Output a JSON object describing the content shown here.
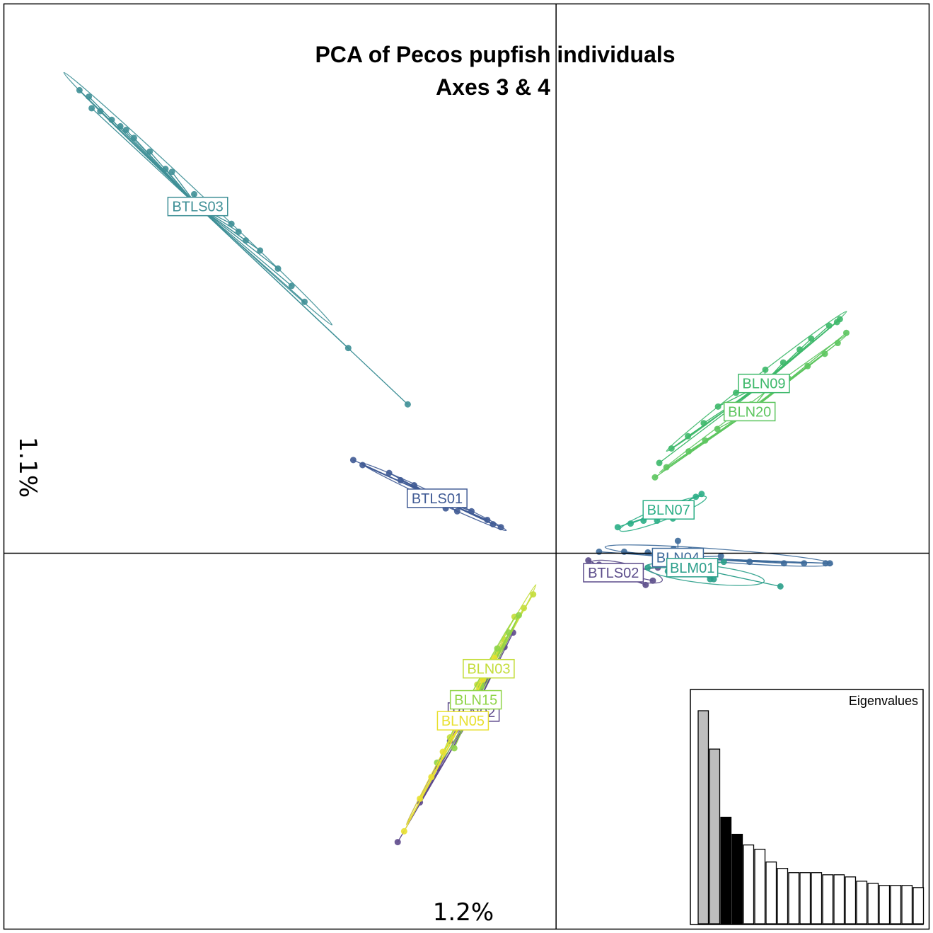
{
  "chart_data": {
    "type": "scatter",
    "title": "PCA of Pecos pupfish individuals",
    "subtitle": "Axes 3 & 4",
    "xlabel": "1.2%",
    "ylabel": "1.1%",
    "xlim": [
      -0.77,
      0.52
    ],
    "ylim": [
      -0.52,
      0.76
    ],
    "origin": [
      0,
      0
    ],
    "grid": false,
    "legend": "none",
    "groups": [
      {
        "name": "BTLS03",
        "color": "#3E8F96",
        "centroid": [
          -0.5,
          0.48
        ],
        "points": [
          [
            -0.665,
            0.641
          ],
          [
            -0.652,
            0.632
          ],
          [
            -0.648,
            0.616
          ],
          [
            -0.636,
            0.612
          ],
          [
            -0.62,
            0.6
          ],
          [
            -0.608,
            0.591
          ],
          [
            -0.6,
            0.586
          ],
          [
            -0.589,
            0.575
          ],
          [
            -0.567,
            0.556
          ],
          [
            -0.545,
            0.532
          ],
          [
            -0.536,
            0.528
          ],
          [
            -0.505,
            0.497
          ],
          [
            -0.476,
            0.476
          ],
          [
            -0.453,
            0.456
          ],
          [
            -0.443,
            0.445
          ],
          [
            -0.433,
            0.433
          ],
          [
            -0.413,
            0.419
          ],
          [
            -0.388,
            0.394
          ],
          [
            -0.369,
            0.37
          ],
          [
            -0.351,
            0.348
          ],
          [
            -0.29,
            0.284
          ],
          [
            -0.207,
            0.206
          ]
        ]
      },
      {
        "name": "BTLS01",
        "color": "#3F5A94",
        "centroid": [
          -0.166,
          0.076
        ],
        "points": [
          [
            -0.283,
            0.129
          ],
          [
            -0.27,
            0.122
          ],
          [
            -0.233,
            0.111
          ],
          [
            -0.217,
            0.101
          ],
          [
            -0.198,
            0.094
          ],
          [
            -0.176,
            0.08
          ],
          [
            -0.154,
            0.062
          ],
          [
            -0.138,
            0.058
          ],
          [
            -0.118,
            0.058
          ],
          [
            -0.096,
            0.046
          ],
          [
            -0.077,
            0.036
          ],
          [
            -0.088,
            0.04
          ]
        ]
      },
      {
        "name": "BTLS02",
        "color": "#5B4C8A",
        "centroid": [
          0.08,
          -0.027
        ],
        "points": [
          [
            0.045,
            -0.01
          ],
          [
            0.06,
            -0.016
          ],
          [
            0.075,
            -0.022
          ],
          [
            0.092,
            -0.025
          ],
          [
            0.11,
            -0.03
          ],
          [
            0.125,
            -0.044
          ],
          [
            0.135,
            -0.038
          ],
          [
            0.142,
            -0.02
          ]
        ]
      },
      {
        "name": "BLN04",
        "color": "#3D6A9A",
        "centroid": [
          0.17,
          -0.006
        ],
        "points": [
          [
            0.06,
            0.002
          ],
          [
            0.095,
            0.002
          ],
          [
            0.128,
            0.001
          ],
          [
            0.164,
            0.006
          ],
          [
            0.187,
            0.004
          ],
          [
            0.23,
            -0.004
          ],
          [
            0.27,
            -0.012
          ],
          [
            0.318,
            -0.014
          ],
          [
            0.346,
            -0.014
          ],
          [
            0.376,
            -0.014
          ],
          [
            0.382,
            -0.014
          ],
          [
            0.17,
            0.017
          ]
        ]
      },
      {
        "name": "BLM01",
        "color": "#2A9E8A",
        "centroid": [
          0.19,
          -0.02
        ],
        "points": [
          [
            0.128,
            -0.02
          ],
          [
            0.156,
            -0.025
          ],
          [
            0.185,
            -0.028
          ],
          [
            0.215,
            -0.036
          ],
          [
            0.22,
            -0.036
          ],
          [
            0.234,
            -0.012
          ],
          [
            0.313,
            -0.046
          ]
        ]
      },
      {
        "name": "BLN07",
        "color": "#2BAE86",
        "centroid": [
          0.157,
          0.06
        ],
        "points": [
          [
            0.086,
            0.036
          ],
          [
            0.104,
            0.041
          ],
          [
            0.122,
            0.045
          ],
          [
            0.141,
            0.045
          ],
          [
            0.163,
            0.048
          ],
          [
            0.18,
            0.062
          ],
          [
            0.195,
            0.078
          ],
          [
            0.203,
            0.082
          ]
        ]
      },
      {
        "name": "BLN09",
        "color": "#3DB86A",
        "centroid": [
          0.29,
          0.235
        ],
        "points": [
          [
            0.144,
            0.125
          ],
          [
            0.161,
            0.145
          ],
          [
            0.184,
            0.162
          ],
          [
            0.206,
            0.18
          ],
          [
            0.226,
            0.203
          ],
          [
            0.251,
            0.222
          ],
          [
            0.27,
            0.238
          ],
          [
            0.292,
            0.254
          ],
          [
            0.317,
            0.264
          ],
          [
            0.34,
            0.282
          ],
          [
            0.356,
            0.297
          ],
          [
            0.381,
            0.315
          ],
          [
            0.392,
            0.32
          ],
          [
            0.396,
            0.324
          ]
        ]
      },
      {
        "name": "BLN20",
        "color": "#5CC55E",
        "centroid": [
          0.27,
          0.196
        ],
        "points": [
          [
            0.138,
            0.105
          ],
          [
            0.154,
            0.119
          ],
          [
            0.185,
            0.141
          ],
          [
            0.208,
            0.156
          ],
          [
            0.225,
            0.172
          ],
          [
            0.251,
            0.191
          ],
          [
            0.272,
            0.206
          ],
          [
            0.294,
            0.226
          ],
          [
            0.324,
            0.242
          ],
          [
            0.351,
            0.259
          ],
          [
            0.375,
            0.276
          ],
          [
            0.393,
            0.291
          ],
          [
            0.405,
            0.305
          ]
        ]
      },
      {
        "name": "BLN02",
        "color": "#5E4A8C",
        "centroid": [
          -0.115,
          -0.22
        ],
        "points": [
          [
            -0.221,
            -0.4
          ],
          [
            -0.19,
            -0.345
          ],
          [
            -0.165,
            -0.297
          ],
          [
            -0.148,
            -0.26
          ],
          [
            -0.128,
            -0.225
          ],
          [
            -0.118,
            -0.205
          ],
          [
            -0.1,
            -0.176
          ],
          [
            -0.072,
            -0.13
          ],
          [
            -0.06,
            -0.11
          ]
        ]
      },
      {
        "name": "BLN03",
        "color": "#C4DD3A",
        "centroid": [
          -0.094,
          -0.16
        ],
        "points": [
          [
            -0.148,
            -0.255
          ],
          [
            -0.126,
            -0.22
          ],
          [
            -0.11,
            -0.182
          ],
          [
            -0.09,
            -0.15
          ],
          [
            -0.072,
            -0.12
          ],
          [
            -0.058,
            -0.088
          ],
          [
            -0.045,
            -0.076
          ],
          [
            -0.032,
            -0.057
          ]
        ]
      },
      {
        "name": "BLN15",
        "color": "#8FD447",
        "centroid": [
          -0.112,
          -0.203
        ],
        "points": [
          [
            -0.166,
            -0.29
          ],
          [
            -0.142,
            -0.27
          ],
          [
            -0.14,
            -0.236
          ],
          [
            -0.121,
            -0.215
          ],
          [
            -0.105,
            -0.184
          ],
          [
            -0.094,
            -0.16
          ],
          [
            -0.082,
            -0.132
          ],
          [
            -0.066,
            -0.11
          ],
          [
            -0.052,
            -0.086
          ]
        ]
      },
      {
        "name": "BLN05",
        "color": "#E8E030",
        "centroid": [
          -0.13,
          -0.232
        ],
        "points": [
          [
            -0.212,
            -0.385
          ],
          [
            -0.19,
            -0.34
          ],
          [
            -0.174,
            -0.31
          ],
          [
            -0.158,
            -0.275
          ],
          [
            -0.14,
            -0.242
          ],
          [
            -0.122,
            -0.21
          ],
          [
            -0.102,
            -0.175
          ],
          [
            -0.086,
            -0.145
          ]
        ]
      }
    ],
    "eigenvalues": {
      "title": "Eigenvalues",
      "values": [
        100,
        82,
        50,
        42,
        37,
        35,
        29,
        26,
        24,
        24,
        24,
        23,
        23,
        22,
        20,
        19,
        18,
        18,
        18,
        17
      ],
      "fill": [
        "#bebebe",
        "#bebebe",
        "#000000",
        "#000000",
        "#ffffff",
        "#ffffff",
        "#ffffff",
        "#ffffff",
        "#ffffff",
        "#ffffff",
        "#ffffff",
        "#ffffff",
        "#ffffff",
        "#ffffff",
        "#ffffff",
        "#ffffff",
        "#ffffff",
        "#ffffff",
        "#ffffff",
        "#ffffff"
      ]
    }
  }
}
